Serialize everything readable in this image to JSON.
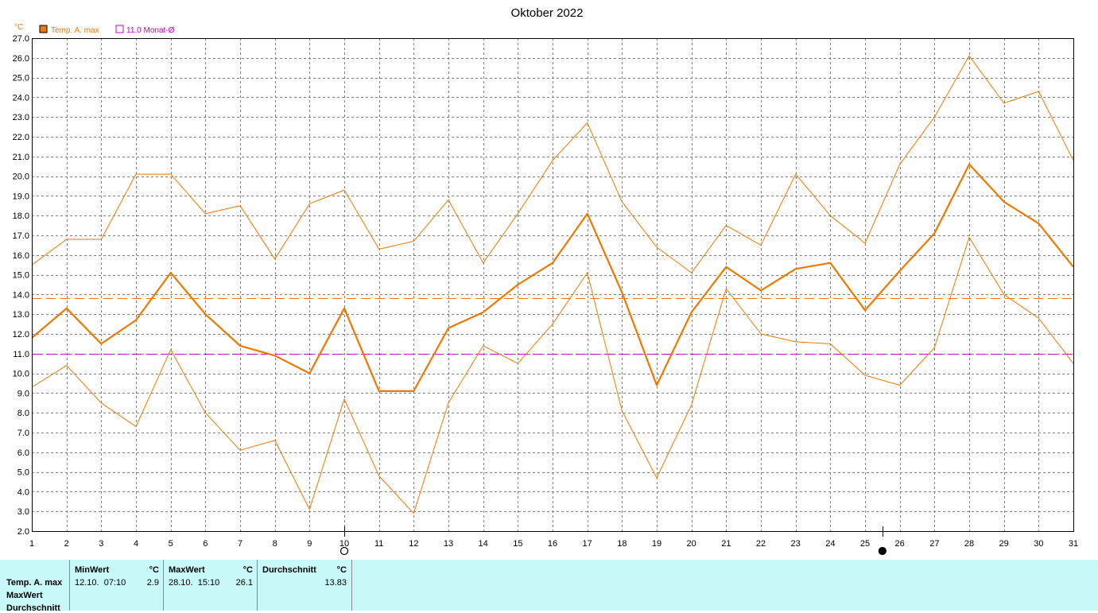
{
  "title": "Oktober 2022",
  "colors": {
    "series": "#f07800",
    "series_dark": "#f07800",
    "mean_line": "#f07800",
    "monthly_avg": "#c000c0",
    "grid": "#808080",
    "plot_bg": "#ffffff",
    "table_bg": "#c8f8f8"
  },
  "chart_data": {
    "type": "line",
    "unit": "°C",
    "x": [
      1,
      2,
      3,
      4,
      5,
      6,
      7,
      8,
      9,
      10,
      11,
      12,
      13,
      14,
      15,
      16,
      17,
      18,
      19,
      20,
      21,
      22,
      23,
      24,
      25,
      26,
      27,
      28,
      29,
      30,
      31
    ],
    "xlim": [
      1,
      31
    ],
    "ylim": [
      2.0,
      27.0
    ],
    "ytick_step": 1.0,
    "grid": true,
    "legend": [
      {
        "label": "Temp. A. max",
        "marker": "filled-square"
      },
      {
        "label": "11.0 Monat-Ø",
        "marker": "open-square"
      }
    ],
    "series": [
      {
        "name": "Temp. A. max",
        "role": "mean",
        "values": [
          11.8,
          13.3,
          11.5,
          12.7,
          15.1,
          13.0,
          11.4,
          10.9,
          10.0,
          13.3,
          9.1,
          9.1,
          12.3,
          13.1,
          14.5,
          15.6,
          18.1,
          14.1,
          9.4,
          13.1,
          15.4,
          14.2,
          15.3,
          15.6,
          13.2,
          15.2,
          17.1,
          20.6,
          18.7,
          17.6,
          15.4
        ]
      },
      {
        "role": "upper",
        "values": [
          15.5,
          16.8,
          16.8,
          20.1,
          20.1,
          18.1,
          18.5,
          15.8,
          18.6,
          19.3,
          16.3,
          16.7,
          18.8,
          15.6,
          18.1,
          20.8,
          22.7,
          18.7,
          16.4,
          15.1,
          17.5,
          16.5,
          20.1,
          18.0,
          16.6,
          20.6,
          23.0,
          26.1,
          23.7,
          24.3,
          20.8
        ]
      },
      {
        "role": "lower",
        "values": [
          9.3,
          10.4,
          8.5,
          7.3,
          11.2,
          8.0,
          6.1,
          6.6,
          3.1,
          8.7,
          4.8,
          2.9,
          8.5,
          11.4,
          10.5,
          12.5,
          15.1,
          8.1,
          4.7,
          8.4,
          14.3,
          12.0,
          11.6,
          11.5,
          9.9,
          9.4,
          11.3,
          16.9,
          14.0,
          12.8,
          10.5
        ]
      }
    ],
    "reference_lines": [
      {
        "y": 13.83,
        "style": "dashed",
        "color_key": "mean_line"
      },
      {
        "y": 11.0,
        "style": "dashed",
        "color_key": "monthly_avg"
      }
    ],
    "moon_phases": [
      {
        "x": 10,
        "phase": "full-moon"
      },
      {
        "x": 25.5,
        "phase": "new-moon"
      }
    ]
  },
  "stats_table": {
    "row_labels": [
      "Temp. A. max",
      "MaxWert",
      "Durchschnitt"
    ],
    "columns": [
      {
        "header": "MinWert",
        "unit": "°C",
        "stamp": "12.10.  07:10",
        "value": "2.9"
      },
      {
        "header": "MaxWert",
        "unit": "°C",
        "stamp": "28.10.  15:10",
        "value": "26.1"
      },
      {
        "header": "Durchschnitt",
        "unit": "°C",
        "stamp": "",
        "value": "13.83"
      }
    ]
  }
}
